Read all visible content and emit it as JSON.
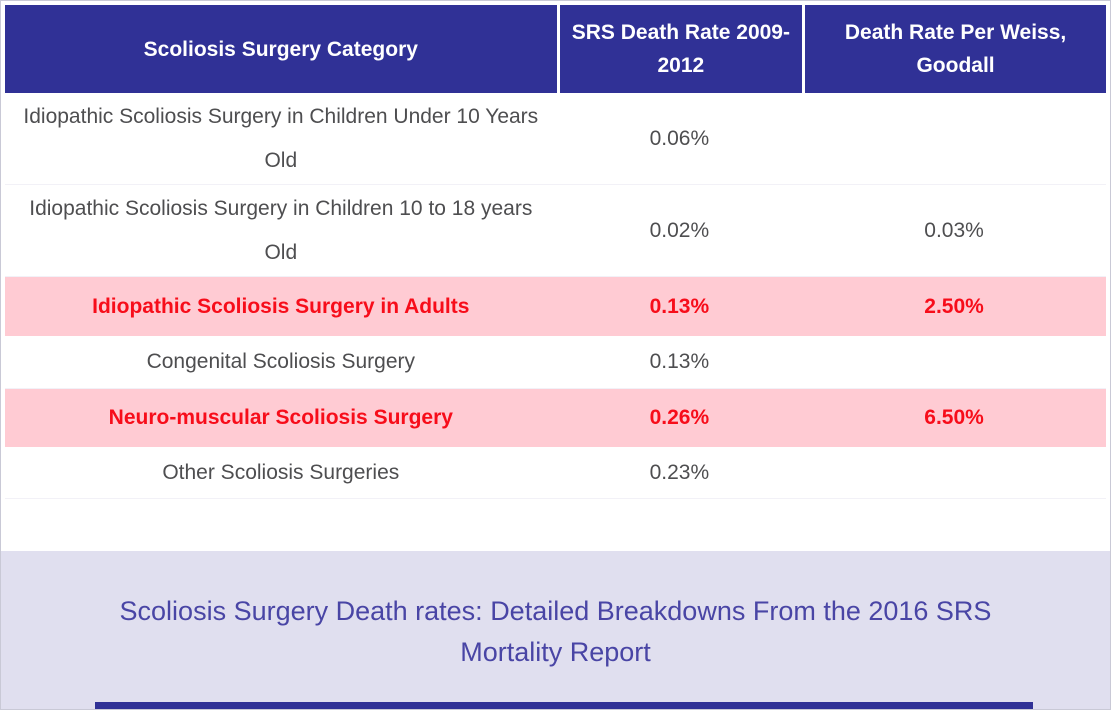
{
  "table": {
    "columns": [
      "Scoliosis Surgery Category",
      "SRS Death Rate 2009-2012",
      "Death Rate Per Weiss, Goodall"
    ],
    "rows": [
      {
        "category": "Idiopathic Scoliosis Surgery in Children Under 10 Years Old",
        "srs_rate": "0.06%",
        "weiss_goodall_rate": "",
        "highlighted": false
      },
      {
        "category": "Idiopathic Scoliosis Surgery in Children 10 to 18 years Old",
        "srs_rate": "0.02%",
        "weiss_goodall_rate": "0.03%",
        "highlighted": false
      },
      {
        "category": "Idiopathic Scoliosis Surgery in Adults",
        "srs_rate": "0.13%",
        "weiss_goodall_rate": "2.50%",
        "highlighted": true
      },
      {
        "category": "Congenital Scoliosis Surgery",
        "srs_rate": "0.13%",
        "weiss_goodall_rate": "",
        "highlighted": false
      },
      {
        "category": "Neuro-muscular Scoliosis Surgery",
        "srs_rate": "0.26%",
        "weiss_goodall_rate": "6.50%",
        "highlighted": true
      },
      {
        "category": "Other Scoliosis Surgeries",
        "srs_rate": "0.23%",
        "weiss_goodall_rate": "",
        "highlighted": false
      }
    ]
  },
  "caption": "Scoliosis Surgery Death rates: Detailed Breakdowns From the 2016 SRS Mortality Report",
  "colors": {
    "header_bg": "#303196",
    "header_text": "#ffffff",
    "highlight_row_bg": "#ffcbd3",
    "highlight_row_text": "#f70d1a",
    "body_text": "#4e4e50",
    "caption_bg": "#e0dfef",
    "caption_text": "#4945a5"
  }
}
